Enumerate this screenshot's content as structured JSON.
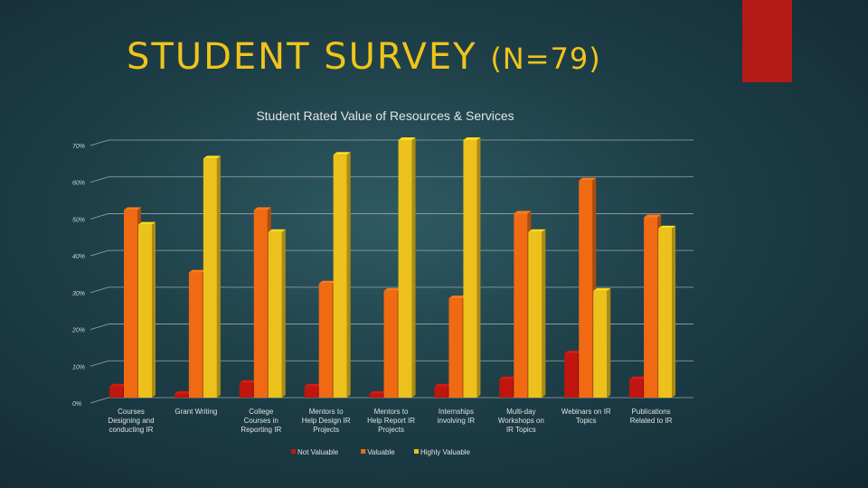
{
  "slide": {
    "title": "STUDENT SURVEY",
    "subtitle": "(N=79)"
  },
  "colors": {
    "accent_block": "#b31b17",
    "title_text": "#f0c419"
  },
  "chart_data": {
    "type": "bar",
    "title": "Student Rated Value of Resources & Services",
    "xlabel": "",
    "ylabel": "",
    "ylim": [
      0,
      70
    ],
    "yticks": [
      "0%",
      "10%",
      "20%",
      "30%",
      "40%",
      "50%",
      "60%",
      "70%"
    ],
    "grid": true,
    "legend_position": "bottom",
    "categories": [
      [
        "Courses",
        "Designing and",
        "conducting IR"
      ],
      [
        "Grant Writing"
      ],
      [
        "College",
        "Courses in",
        "Reporting IR"
      ],
      [
        "Mentors to",
        "Help Design IR",
        "Projects"
      ],
      [
        "Mentors to",
        "Help Report IR",
        "Projects"
      ],
      [
        "Internships",
        "involving IR"
      ],
      [
        "Multi-day",
        "Workshops on",
        "IR Topics"
      ],
      [
        "Webinars on IR",
        "Topics"
      ],
      [
        "Publications",
        "Related to IR"
      ]
    ],
    "series": [
      {
        "name": "Not Valuable",
        "color": "#c0160f",
        "values": [
          3,
          1,
          4,
          3,
          1,
          3,
          5,
          12,
          5
        ]
      },
      {
        "name": "Valuable",
        "color": "#f06a14",
        "values": [
          51,
          34,
          51,
          31,
          29,
          27,
          50,
          59,
          49
        ]
      },
      {
        "name": "Highly Valuable",
        "color": "#ecc11c",
        "values": [
          47,
          65,
          45,
          66,
          70,
          70,
          45,
          29,
          46
        ]
      }
    ]
  }
}
